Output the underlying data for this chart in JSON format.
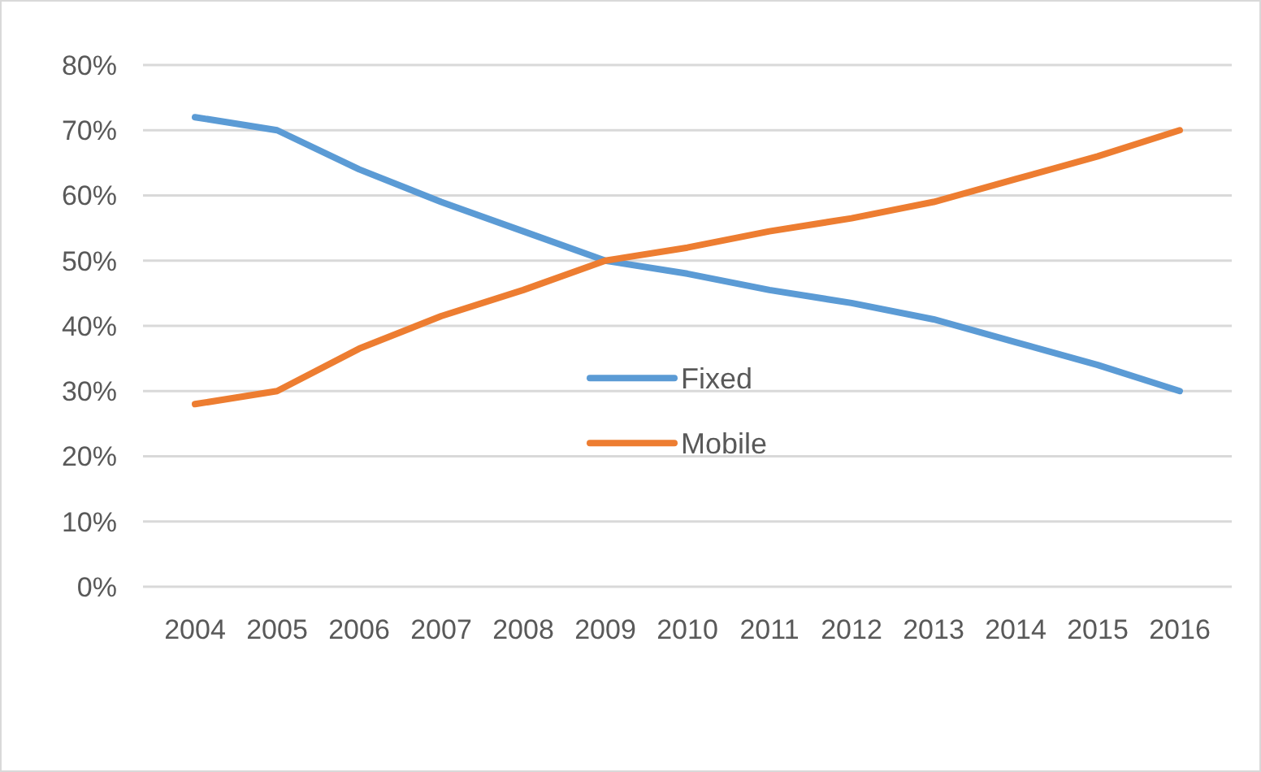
{
  "chart_data": {
    "type": "line",
    "categories": [
      "2004",
      "2005",
      "2006",
      "2007",
      "2008",
      "2009",
      "2010",
      "2011",
      "2012",
      "2013",
      "2014",
      "2015",
      "2016"
    ],
    "series": [
      {
        "name": "Fixed",
        "color": "#5b9bd5",
        "values": [
          0.72,
          0.7,
          0.64,
          0.59,
          0.545,
          0.5,
          0.48,
          0.455,
          0.435,
          0.41,
          0.375,
          0.34,
          0.3
        ]
      },
      {
        "name": "Mobile",
        "color": "#ed7d31",
        "values": [
          0.28,
          0.3,
          0.365,
          0.415,
          0.455,
          0.5,
          0.52,
          0.545,
          0.565,
          0.59,
          0.625,
          0.66,
          0.7
        ]
      }
    ],
    "ylim": [
      0,
      0.8
    ],
    "yticks": [
      {
        "value": 0,
        "label": "0%"
      },
      {
        "value": 0.1,
        "label": "10%"
      },
      {
        "value": 0.2,
        "label": "20%"
      },
      {
        "value": 0.3,
        "label": "30%"
      },
      {
        "value": 0.4,
        "label": "40%"
      },
      {
        "value": 0.5,
        "label": "50%"
      },
      {
        "value": 0.6,
        "label": "60%"
      },
      {
        "value": 0.7,
        "label": "70%"
      },
      {
        "value": 0.8,
        "label": "80%"
      }
    ],
    "grid": "y",
    "legend": "center",
    "marker": "none",
    "line_style": "solid"
  }
}
